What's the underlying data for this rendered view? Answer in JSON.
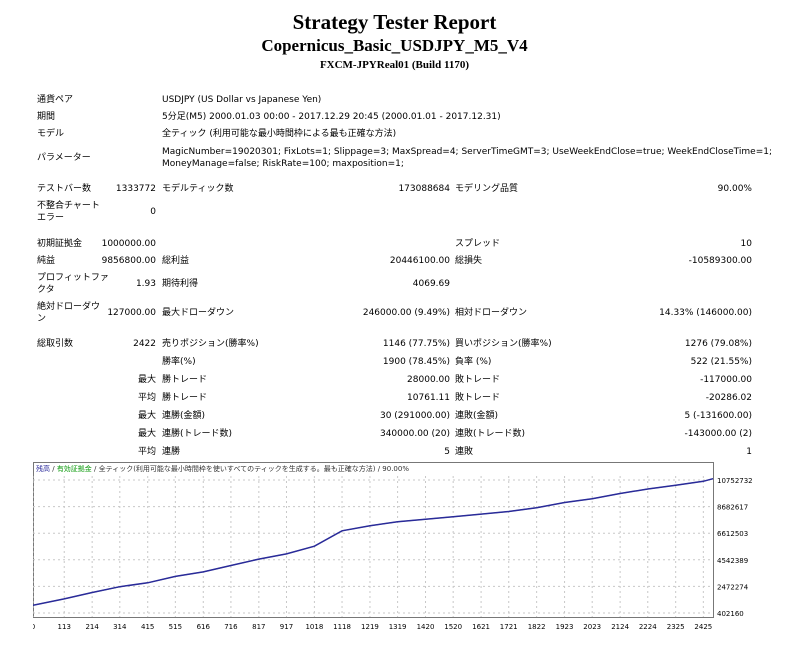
{
  "header": {
    "title": "Strategy Tester Report",
    "strategy": "Copernicus_Basic_USDJPY_M5_V4",
    "server": "FXCM-JPYReal01 (Build 1170)"
  },
  "info": {
    "symbol_label": "通貨ペア",
    "symbol_value": "USDJPY (US Dollar vs Japanese Yen)",
    "period_label": "期間",
    "period_value": "5分足(M5) 2000.01.03 00:00 - 2017.12.29 20:45 (2000.01.01 - 2017.12.31)",
    "model_label": "モデル",
    "model_value": "全ティック (利用可能な最小時間枠による最も正確な方法)",
    "params_label": "パラメーター",
    "params_line1": "MagicNumber=19020301; FixLots=1; Slippage=3; MaxSpread=4; ServerTimeGMT=3; UseWeekEndClose=true; WeekEndCloseTime=1;",
    "params_line2": "MoneyManage=false; RiskRate=100; maxposition=1;"
  },
  "stats": {
    "bars_label": "テストバー数",
    "bars_value": "1333772",
    "ticks_label": "モデルティック数",
    "ticks_value": "173088684",
    "quality_label": "モデリング品質",
    "quality_value": "90.00%",
    "mismatch_label_1": "不整合チャート",
    "mismatch_label_2": "エラー",
    "mismatch_value": "0",
    "deposit_label": "初期証拠金",
    "deposit_value": "1000000.00",
    "spread_label": "スプレッド",
    "spread_value": "10",
    "netprofit_label": "純益",
    "netprofit_value": "9856800.00",
    "grossprofit_label": "総利益",
    "grossprofit_value": "20446100.00",
    "grossloss_label": "総損失",
    "grossloss_value": "-10589300.00",
    "pf_label_1": "プロフィットファ",
    "pf_label_2": "クタ",
    "pf_value": "1.93",
    "payoff_label": "期待利得",
    "payoff_value": "4069.69",
    "absdd_label_1": "絶対ドローダウ",
    "absdd_label_2": "ン",
    "absdd_value": "127000.00",
    "maxdd_label": "最大ドローダウン",
    "maxdd_value": "246000.00 (9.49%)",
    "reldd_label": "相対ドローダウン",
    "reldd_value": "14.33% (146000.00)",
    "trades_label": "総取引数",
    "trades_value": "2422",
    "short_label": "売りポジション(勝率%)",
    "short_value": "1146 (77.75%)",
    "long_label": "買いポジション(勝率%)",
    "long_value": "1276 (79.08%)",
    "winrate_label": "勝率(%)",
    "winrate_value": "1900 (78.45%)",
    "lossrate_label": "負率 (%)",
    "lossrate_value": "522 (21.55%)",
    "max_prefix": "最大",
    "avg_prefix": "平均",
    "largest_win_label": "勝トレード",
    "largest_win_value": "28000.00",
    "largest_loss_label": "敗トレード",
    "largest_loss_value": "-117000.00",
    "avg_win_label": "勝トレード",
    "avg_win_value": "10761.11",
    "avg_loss_label": "敗トレード",
    "avg_loss_value": "-20286.02",
    "consec_wins_label": "連勝(金額)",
    "consec_wins_value": "30 (291000.00)",
    "consec_losses_label": "連敗(金額)",
    "consec_losses_value": "5 (-131600.00)",
    "consec_profit_label": "連勝(トレード数)",
    "consec_profit_value": "340000.00 (20)",
    "consec_loss_label": "連敗(トレード数)",
    "consec_loss_value": "-143000.00 (2)",
    "avg_consec_wins_label": "連勝",
    "avg_consec_wins_value": "5",
    "avg_consec_losses_label": "連敗",
    "avg_consec_losses_value": "1"
  },
  "chart_data": {
    "type": "line",
    "legend": {
      "balance": "残高",
      "sep1": " / ",
      "equity": "有効証拠金",
      "sep2": " / ",
      "model": "全ティック(利用可能な最小時間枠を使いすべてのティックを生成する。最も正確な方法)",
      "sep3": " / ",
      "quality": "90.00%"
    },
    "colors": {
      "balance": "#2a2a9a",
      "equity": "#0b9a0b",
      "grid": "#c8c8c8",
      "axis": "#555555"
    },
    "x_ticks": [
      0,
      113,
      214,
      314,
      415,
      515,
      616,
      716,
      817,
      917,
      1018,
      1118,
      1219,
      1319,
      1420,
      1520,
      1621,
      1721,
      1822,
      1923,
      2023,
      2124,
      2224,
      2325,
      2425
    ],
    "y_ticks": [
      402160,
      2472274,
      4542389,
      6612503,
      8682617,
      10752732
    ],
    "xlim": [
      0,
      2460
    ],
    "ylim": [
      402160,
      10752732
    ],
    "series": [
      {
        "name": "残高",
        "x": [
          0,
          113,
          214,
          314,
          415,
          515,
          616,
          716,
          817,
          917,
          1018,
          1118,
          1219,
          1319,
          1420,
          1520,
          1621,
          1721,
          1822,
          1923,
          2023,
          2124,
          2224,
          2325,
          2425,
          2460
        ],
        "values": [
          1000000,
          1500000,
          2000000,
          2450000,
          2750000,
          3250000,
          3600000,
          4100000,
          4600000,
          5000000,
          5600000,
          6800000,
          7200000,
          7500000,
          7700000,
          7900000,
          8100000,
          8300000,
          8600000,
          9000000,
          9300000,
          9700000,
          10050000,
          10350000,
          10650000,
          10856800
        ]
      }
    ]
  }
}
